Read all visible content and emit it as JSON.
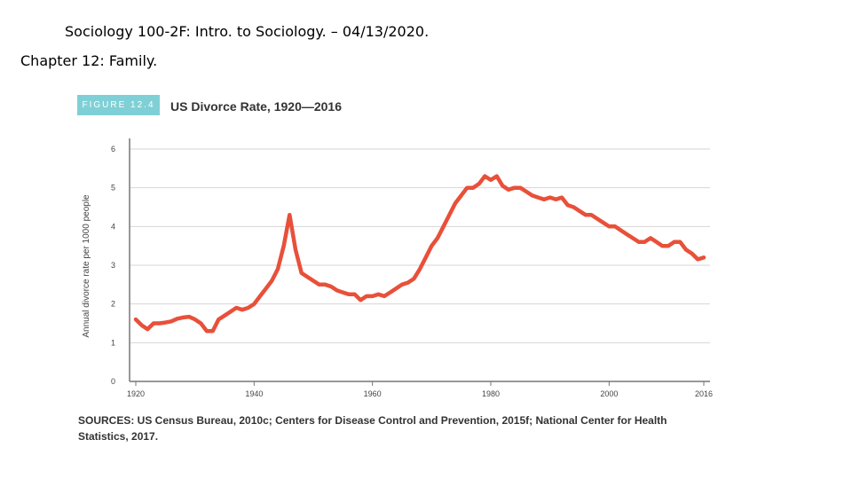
{
  "slide": {
    "title": "Sociology 100-2F: Intro. to Sociology. – 04/13/2020.",
    "subtitle": "Chapter 12: Family."
  },
  "figure": {
    "badge": "FIGURE 12.4",
    "title": "US Divorce Rate, 1920—2016",
    "sources": "SOURCES: US Census Bureau, 2010c; Centers for Disease Control and Prevention, 2015f; National Center for Health Statistics, 2017.",
    "line_color": "#e8503a",
    "badge_color": "#7fd0d6"
  },
  "chart_data": {
    "type": "line",
    "title": "US Divorce Rate, 1920—2016",
    "xlabel": "",
    "ylabel": "Annual divorce rate per 1000 people",
    "xlim": [
      1920,
      2016
    ],
    "ylim": [
      0,
      6
    ],
    "x_ticks": [
      1920,
      1940,
      1960,
      1980,
      2000,
      2016
    ],
    "y_ticks": [
      0,
      1,
      2,
      3,
      4,
      5,
      6
    ],
    "grid": "horizontal",
    "series": [
      {
        "x": [
          1920,
          1921,
          1922,
          1923,
          1924,
          1925,
          1926,
          1927,
          1928,
          1929,
          1930,
          1931,
          1932,
          1933,
          1934,
          1935,
          1936,
          1937,
          1938,
          1939,
          1940,
          1941,
          1942,
          1943,
          1944,
          1945,
          1946,
          1947,
          1948,
          1949,
          1950,
          1951,
          1952,
          1953,
          1954,
          1955,
          1956,
          1957,
          1958,
          1959,
          1960,
          1961,
          1962,
          1963,
          1964,
          1965,
          1966,
          1967,
          1968,
          1969,
          1970,
          1971,
          1972,
          1973,
          1974,
          1975,
          1976,
          1977,
          1978,
          1979,
          1980,
          1981,
          1982,
          1983,
          1984,
          1985,
          1986,
          1987,
          1988,
          1989,
          1990,
          1991,
          1992,
          1993,
          1994,
          1995,
          1996,
          1997,
          1998,
          1999,
          2000,
          2001,
          2002,
          2003,
          2004,
          2005,
          2006,
          2007,
          2008,
          2009,
          2010,
          2011,
          2012,
          2013,
          2014,
          2015,
          2016
        ],
        "y": [
          1.6,
          1.45,
          1.35,
          1.5,
          1.5,
          1.52,
          1.55,
          1.62,
          1.65,
          1.67,
          1.6,
          1.5,
          1.3,
          1.3,
          1.6,
          1.7,
          1.8,
          1.9,
          1.85,
          1.9,
          2.0,
          2.2,
          2.4,
          2.6,
          2.9,
          3.5,
          4.3,
          3.4,
          2.8,
          2.7,
          2.6,
          2.5,
          2.5,
          2.45,
          2.35,
          2.3,
          2.25,
          2.25,
          2.1,
          2.2,
          2.2,
          2.25,
          2.2,
          2.3,
          2.4,
          2.5,
          2.55,
          2.65,
          2.9,
          3.2,
          3.5,
          3.7,
          4.0,
          4.3,
          4.6,
          4.8,
          5.0,
          5.0,
          5.1,
          5.3,
          5.2,
          5.3,
          5.05,
          4.95,
          5.0,
          5.0,
          4.9,
          4.8,
          4.75,
          4.7,
          4.75,
          4.7,
          4.75,
          4.55,
          4.5,
          4.4,
          4.3,
          4.3,
          4.2,
          4.1,
          4.0,
          4.0,
          3.9,
          3.8,
          3.7,
          3.6,
          3.6,
          3.7,
          3.6,
          3.5,
          3.5,
          3.6,
          3.6,
          3.4,
          3.3,
          3.15,
          3.2
        ]
      }
    ]
  }
}
